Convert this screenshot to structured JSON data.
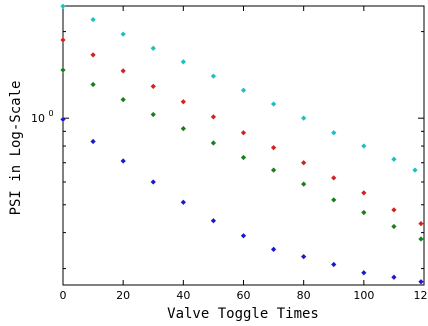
{
  "chart_data": {
    "type": "scatter",
    "xlabel": "Valve Toggle Times",
    "ylabel": "PSI in Log-Scale",
    "x_ticks": [
      "0",
      "20",
      "40",
      "60",
      "80",
      "100",
      "120"
    ],
    "y_tick_label": {
      "base": "10",
      "exp": "0"
    },
    "xlim": [
      0,
      120
    ],
    "ylim_log10": [
      -0.58,
      0.39
    ],
    "y_scale": "log",
    "grid": false,
    "legend": "none",
    "series": [
      {
        "color": "#19c2c2",
        "marker": "diamond",
        "x": [
          0,
          10,
          20,
          30,
          40,
          50,
          60,
          70,
          80,
          90,
          100,
          110,
          117
        ],
        "y": [
          2.45,
          2.2,
          1.96,
          1.75,
          1.57,
          1.4,
          1.25,
          1.12,
          1.0,
          0.89,
          0.8,
          0.72,
          0.66
        ]
      },
      {
        "color": "#d62020",
        "marker": "diamond",
        "x": [
          0,
          10,
          20,
          30,
          40,
          50,
          60,
          70,
          80,
          90,
          100,
          110,
          119
        ],
        "y": [
          1.87,
          1.66,
          1.46,
          1.29,
          1.14,
          1.01,
          0.89,
          0.79,
          0.7,
          0.62,
          0.55,
          0.48,
          0.43
        ]
      },
      {
        "color": "#1a7f1a",
        "marker": "diamond",
        "x": [
          0,
          10,
          20,
          30,
          40,
          50,
          60,
          70,
          80,
          90,
          100,
          110,
          119
        ],
        "y": [
          1.47,
          1.31,
          1.16,
          1.03,
          0.92,
          0.82,
          0.73,
          0.66,
          0.59,
          0.52,
          0.47,
          0.42,
          0.38
        ]
      },
      {
        "color": "#1a1acc",
        "marker": "diamond",
        "x": [
          0,
          10,
          20,
          30,
          40,
          50,
          60,
          70,
          80,
          90,
          100,
          110,
          119
        ],
        "y": [
          0.99,
          0.83,
          0.71,
          0.6,
          0.51,
          0.44,
          0.39,
          0.35,
          0.33,
          0.31,
          0.29,
          0.28,
          0.27
        ]
      }
    ]
  }
}
